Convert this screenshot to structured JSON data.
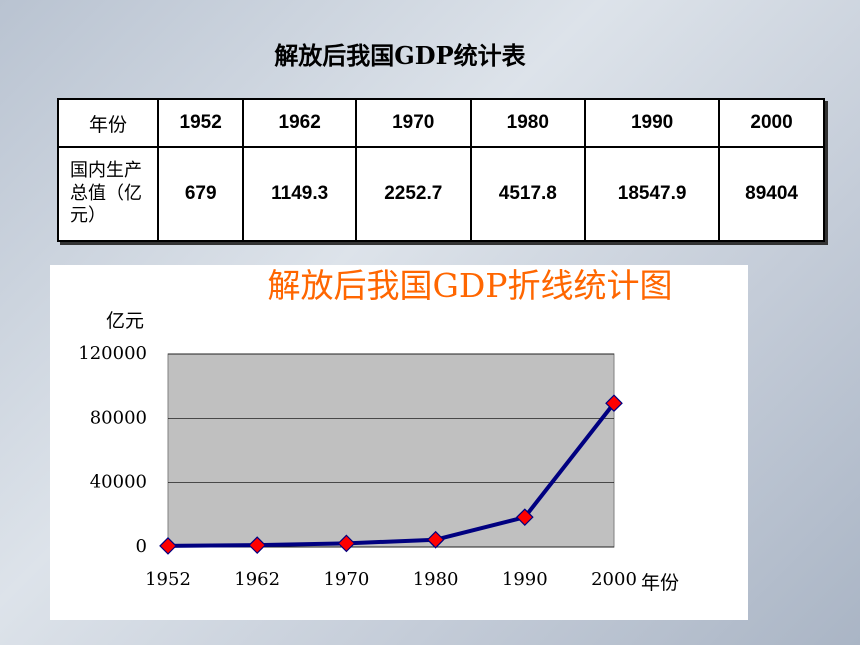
{
  "table": {
    "title": "解放后我国GDP统计表",
    "rows": [
      [
        "年份",
        "1952",
        "1962",
        "1970",
        "1980",
        "1990",
        "2000"
      ],
      [
        "国内生产总值（亿元）",
        "679",
        "1149.3",
        "2252.7",
        "4517.8",
        "18547.9",
        "89404"
      ]
    ]
  },
  "chart_data": {
    "type": "line",
    "title": "解放后我国GDP折线统计图",
    "y_label": "亿元",
    "x_label": "年份",
    "categories": [
      "1952",
      "1962",
      "1970",
      "1980",
      "1990",
      "2000"
    ],
    "series": [
      {
        "name": "GDP",
        "color": "#000080",
        "marker_color": "#ff0000",
        "values": [
          679,
          1149.3,
          2252.7,
          4517.8,
          18547.9,
          89404
        ]
      }
    ],
    "ylim": [
      0,
      120000
    ],
    "yticks": [
      0,
      40000,
      80000,
      120000
    ],
    "grid": true
  }
}
